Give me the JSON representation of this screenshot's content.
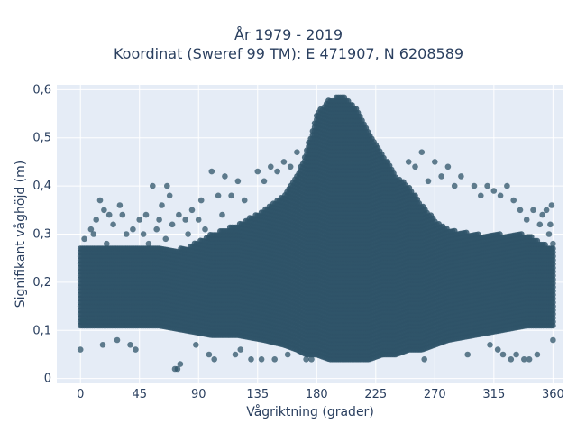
{
  "chart_data": {
    "type": "scatter",
    "title": "År 1979 - 2019",
    "subtitle": "Koordinat (Sweref 99 TM): E 471907, N 6208589",
    "xlabel": "Vågriktning (grader)",
    "ylabel": "Signifikant våghöjd (m)",
    "xlim": [
      -18,
      368
    ],
    "ylim": [
      -0.01,
      0.61
    ],
    "xticks": [
      0,
      45,
      90,
      135,
      180,
      225,
      270,
      315,
      360
    ],
    "xtick_labels": [
      "0",
      "45",
      "90",
      "135",
      "180",
      "225",
      "270",
      "315",
      "360"
    ],
    "yticks": [
      0,
      0.1,
      0.2,
      0.3,
      0.4,
      0.5,
      0.6
    ],
    "ytick_labels": [
      "0",
      "0,1",
      "0,2",
      "0,3",
      "0,4",
      "0,5",
      "0,6"
    ],
    "grid": true,
    "marker_color": "#2f5468",
    "plot_bg": "#e5ecf6",
    "envelope": {
      "direction": [
        0,
        20,
        40,
        60,
        80,
        100,
        120,
        140,
        155,
        165,
        172,
        180,
        190,
        200,
        210,
        220,
        230,
        240,
        250,
        260,
        270,
        280,
        300,
        320,
        340,
        360
      ],
      "upper": [
        0.27,
        0.27,
        0.27,
        0.27,
        0.27,
        0.3,
        0.32,
        0.35,
        0.38,
        0.42,
        0.47,
        0.55,
        0.58,
        0.59,
        0.56,
        0.51,
        0.47,
        0.42,
        0.4,
        0.36,
        0.33,
        0.31,
        0.3,
        0.3,
        0.3,
        0.27
      ],
      "lower": [
        0.11,
        0.11,
        0.11,
        0.11,
        0.1,
        0.09,
        0.09,
        0.08,
        0.07,
        0.06,
        0.05,
        0.05,
        0.04,
        0.04,
        0.04,
        0.04,
        0.05,
        0.05,
        0.06,
        0.06,
        0.07,
        0.08,
        0.09,
        0.1,
        0.11,
        0.11
      ]
    },
    "outliers": [
      [
        0,
        0.06
      ],
      [
        2,
        0.12
      ],
      [
        3,
        0.29
      ],
      [
        8,
        0.31
      ],
      [
        10,
        0.3
      ],
      [
        12,
        0.33
      ],
      [
        15,
        0.37
      ],
      [
        17,
        0.07
      ],
      [
        18,
        0.35
      ],
      [
        20,
        0.28
      ],
      [
        22,
        0.34
      ],
      [
        25,
        0.32
      ],
      [
        28,
        0.08
      ],
      [
        30,
        0.36
      ],
      [
        32,
        0.34
      ],
      [
        35,
        0.3
      ],
      [
        38,
        0.07
      ],
      [
        40,
        0.31
      ],
      [
        42,
        0.06
      ],
      [
        45,
        0.33
      ],
      [
        48,
        0.3
      ],
      [
        50,
        0.34
      ],
      [
        52,
        0.28
      ],
      [
        55,
        0.4
      ],
      [
        58,
        0.31
      ],
      [
        60,
        0.33
      ],
      [
        62,
        0.36
      ],
      [
        65,
        0.29
      ],
      [
        66,
        0.4
      ],
      [
        68,
        0.38
      ],
      [
        70,
        0.32
      ],
      [
        72,
        0.02
      ],
      [
        74,
        0.02
      ],
      [
        75,
        0.34
      ],
      [
        76,
        0.03
      ],
      [
        80,
        0.33
      ],
      [
        82,
        0.3
      ],
      [
        85,
        0.35
      ],
      [
        88,
        0.07
      ],
      [
        90,
        0.33
      ],
      [
        92,
        0.37
      ],
      [
        95,
        0.31
      ],
      [
        98,
        0.05
      ],
      [
        100,
        0.43
      ],
      [
        102,
        0.04
      ],
      [
        105,
        0.38
      ],
      [
        108,
        0.34
      ],
      [
        110,
        0.42
      ],
      [
        115,
        0.38
      ],
      [
        118,
        0.05
      ],
      [
        120,
        0.41
      ],
      [
        122,
        0.06
      ],
      [
        125,
        0.37
      ],
      [
        130,
        0.04
      ],
      [
        135,
        0.43
      ],
      [
        138,
        0.04
      ],
      [
        140,
        0.41
      ],
      [
        145,
        0.44
      ],
      [
        148,
        0.04
      ],
      [
        150,
        0.43
      ],
      [
        155,
        0.45
      ],
      [
        158,
        0.05
      ],
      [
        160,
        0.44
      ],
      [
        165,
        0.47
      ],
      [
        172,
        0.04
      ],
      [
        176,
        0.04
      ],
      [
        230,
        0.05
      ],
      [
        250,
        0.45
      ],
      [
        255,
        0.44
      ],
      [
        260,
        0.47
      ],
      [
        262,
        0.04
      ],
      [
        265,
        0.41
      ],
      [
        270,
        0.45
      ],
      [
        275,
        0.42
      ],
      [
        280,
        0.44
      ],
      [
        285,
        0.4
      ],
      [
        290,
        0.42
      ],
      [
        295,
        0.05
      ],
      [
        300,
        0.4
      ],
      [
        305,
        0.38
      ],
      [
        310,
        0.4
      ],
      [
        312,
        0.07
      ],
      [
        315,
        0.39
      ],
      [
        318,
        0.06
      ],
      [
        320,
        0.38
      ],
      [
        322,
        0.05
      ],
      [
        325,
        0.4
      ],
      [
        328,
        0.04
      ],
      [
        330,
        0.37
      ],
      [
        332,
        0.05
      ],
      [
        335,
        0.35
      ],
      [
        338,
        0.04
      ],
      [
        340,
        0.33
      ],
      [
        342,
        0.04
      ],
      [
        345,
        0.35
      ],
      [
        348,
        0.05
      ],
      [
        350,
        0.32
      ],
      [
        352,
        0.34
      ],
      [
        355,
        0.35
      ],
      [
        357,
        0.3
      ],
      [
        358,
        0.32
      ],
      [
        359,
        0.36
      ],
      [
        360,
        0.08
      ],
      [
        360,
        0.28
      ]
    ]
  }
}
